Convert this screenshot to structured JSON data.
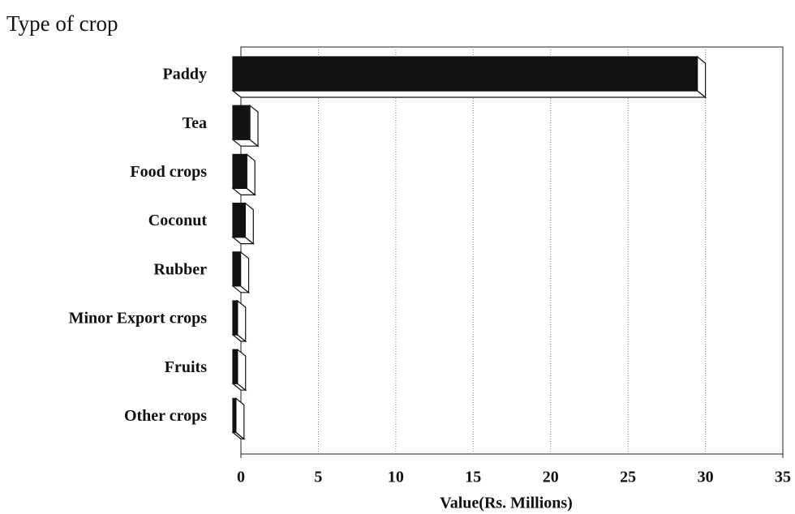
{
  "chart_data": {
    "type": "bar3d_horizontal",
    "title": "Type of crop",
    "x_label": "Value(Rs. Millions)",
    "categories": [
      "Paddy",
      "Tea",
      "Food crops",
      "Coconut",
      "Rubber",
      "Minor Export crops",
      "Fruits",
      "Other crops"
    ],
    "values": [
      30,
      1.1,
      0.9,
      0.8,
      0.5,
      0.3,
      0.3,
      0.2
    ],
    "color": "#111111",
    "xlim": [
      0,
      35
    ],
    "xticks": [
      0,
      5,
      10,
      15,
      20,
      25,
      30,
      35
    ],
    "grid": true
  }
}
